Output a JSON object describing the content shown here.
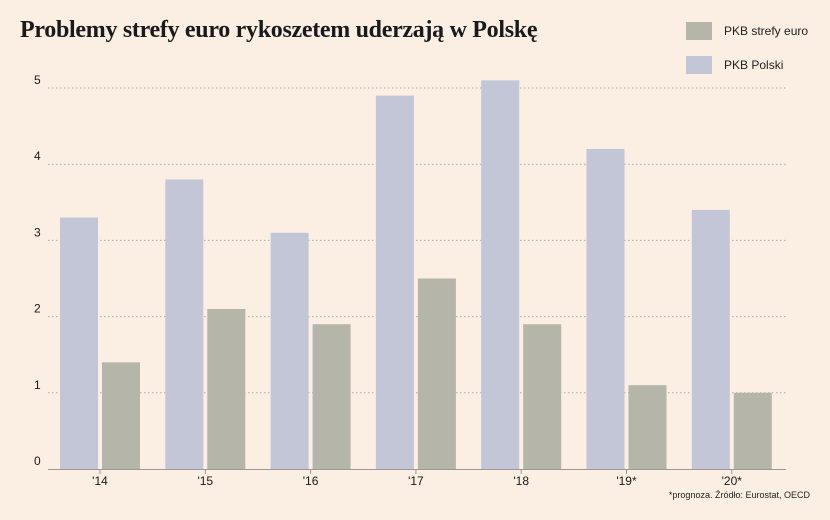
{
  "title": "Problemy strefy euro rykoszetem uderzają w Polskę",
  "footnote": "*prognoza. Źródło: Eurostat, OECD",
  "colors": {
    "background": "#fbeee2",
    "euro": "#b6b5aa",
    "poland": "#c2c6d7",
    "grid": "#aaaaaa",
    "axis": "#999999",
    "text": "#1a1a1a"
  },
  "legend": [
    {
      "label": "PKB strefy euro",
      "color": "#b6b5aa"
    },
    {
      "label": "PKB Polski",
      "color": "#c2c6d7"
    }
  ],
  "chart_data": {
    "type": "bar",
    "categories": [
      "'14",
      "'15",
      "'16",
      "'17",
      "'18",
      "'19*",
      "'20*"
    ],
    "series": [
      {
        "name": "PKB Polski",
        "color": "#c2c6d7",
        "values": [
          3.3,
          3.8,
          3.1,
          4.9,
          5.1,
          4.2,
          3.4
        ]
      },
      {
        "name": "PKB strefy euro",
        "color": "#b6b5aa",
        "values": [
          1.4,
          2.1,
          1.9,
          2.5,
          1.9,
          1.1,
          1.0
        ]
      }
    ],
    "yticks": [
      "0",
      "1",
      "2",
      "3",
      "4",
      "5"
    ],
    "ylim": [
      0,
      5.3
    ],
    "grid": true,
    "legend_position": "top-right"
  }
}
